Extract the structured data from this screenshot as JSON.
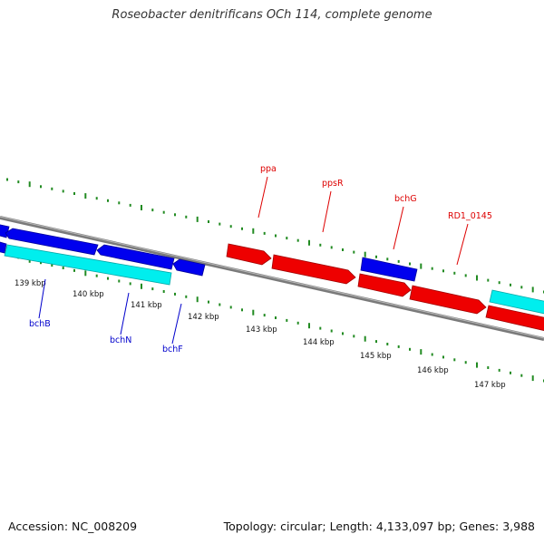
{
  "header": {
    "title": "Roseobacter denitrificans OCh 114, complete genome"
  },
  "footer": {
    "accession": "Accession: NC_008209",
    "summary": "Topology: circular; Length: 4,133,097 bp; Genes: 3,988"
  },
  "colors": {
    "forward_strand": "#ff0000",
    "reverse_strand": "#0000ee",
    "rna_or_other": "#00e5ee",
    "backbone": "#808080",
    "gc_ticks": "#228b22"
  },
  "scale": {
    "unit": "kbp",
    "ticks": [
      {
        "kbp": 139,
        "label": "139 kbp"
      },
      {
        "kbp": 140,
        "label": "140 kbp"
      },
      {
        "kbp": 141,
        "label": "141 kbp"
      },
      {
        "kbp": 142,
        "label": "142 kbp"
      },
      {
        "kbp": 143,
        "label": "143 kbp"
      },
      {
        "kbp": 144,
        "label": "144 kbp"
      },
      {
        "kbp": 145,
        "label": "145 kbp"
      },
      {
        "kbp": 146,
        "label": "146 kbp"
      },
      {
        "kbp": 147,
        "label": "147 kbp"
      }
    ]
  },
  "gene_labels": [
    {
      "name": "ppa",
      "strand": "forward"
    },
    {
      "name": "ppsR",
      "strand": "forward"
    },
    {
      "name": "bchG",
      "strand": "reverse"
    },
    {
      "name": "RD1_0145",
      "strand": "forward"
    },
    {
      "name": "bchB",
      "strand": "reverse"
    },
    {
      "name": "bchN",
      "strand": "reverse"
    },
    {
      "name": "bchF",
      "strand": "reverse"
    }
  ]
}
